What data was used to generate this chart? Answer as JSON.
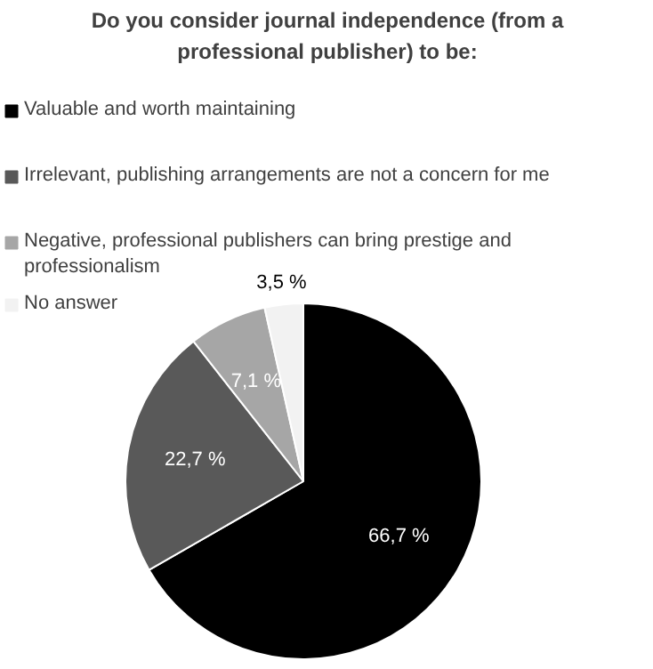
{
  "chart_data": {
    "type": "pie",
    "title": "Do you consider journal independence (from a professional publisher) to be:",
    "categories": [
      "Valuable and worth maintaining",
      "Irrelevant, publishing arrangements are not a concern for me",
      "Negative, professional publishers can bring prestige and professionalism",
      "No answer"
    ],
    "values": [
      66.7,
      22.7,
      7.1,
      3.5
    ],
    "colors": [
      "#000000",
      "#595959",
      "#a6a6a6",
      "#f2f2f2"
    ],
    "value_labels": [
      "66,7 %",
      "22,7 %",
      "7,1 %",
      "3,5 %"
    ],
    "legend": "top"
  }
}
